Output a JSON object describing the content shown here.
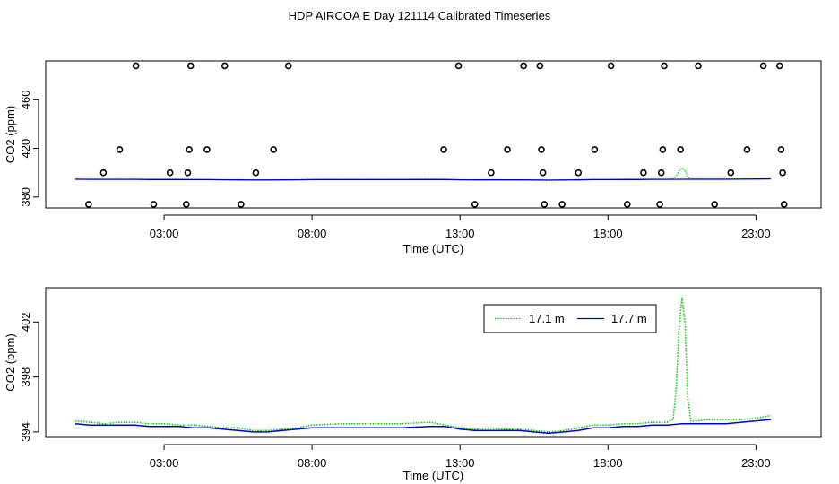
{
  "title": "HDP AIRCOA E  Day 121114  Calibrated Timeseries",
  "chart_data": [
    {
      "type": "scatter",
      "panel": "top",
      "xlabel": "Time (UTC)",
      "ylabel": "CO2 (ppm)",
      "xlim": [
        -1.0,
        25.2
      ],
      "ylim": [
        371,
        492
      ],
      "xticks": [
        3,
        8,
        13,
        18,
        23
      ],
      "xtick_labels": [
        "03:00",
        "08:00",
        "13:00",
        "18:00",
        "23:00"
      ],
      "yticks": [
        380,
        420,
        460
      ],
      "ytick_labels": [
        "380",
        "420",
        "460"
      ],
      "calibration_points": [
        {
          "t": 0.45,
          "co2": 374
        },
        {
          "t": 0.95,
          "co2": 400
        },
        {
          "t": 1.5,
          "co2": 419
        },
        {
          "t": 2.05,
          "co2": 488
        },
        {
          "t": 2.65,
          "co2": 374
        },
        {
          "t": 3.2,
          "co2": 400
        },
        {
          "t": 3.75,
          "co2": 374
        },
        {
          "t": 3.8,
          "co2": 400
        },
        {
          "t": 3.85,
          "co2": 419
        },
        {
          "t": 3.9,
          "co2": 488
        },
        {
          "t": 4.45,
          "co2": 419
        },
        {
          "t": 5.05,
          "co2": 488
        },
        {
          "t": 5.6,
          "co2": 374
        },
        {
          "t": 6.1,
          "co2": 400
        },
        {
          "t": 6.7,
          "co2": 419
        },
        {
          "t": 7.2,
          "co2": 488
        },
        {
          "t": 12.45,
          "co2": 419
        },
        {
          "t": 12.95,
          "co2": 488
        },
        {
          "t": 13.5,
          "co2": 374
        },
        {
          "t": 14.05,
          "co2": 400
        },
        {
          "t": 14.6,
          "co2": 419
        },
        {
          "t": 15.15,
          "co2": 488
        },
        {
          "t": 15.7,
          "co2": 488
        },
        {
          "t": 15.75,
          "co2": 419
        },
        {
          "t": 15.8,
          "co2": 400
        },
        {
          "t": 15.85,
          "co2": 374
        },
        {
          "t": 16.45,
          "co2": 374
        },
        {
          "t": 17.0,
          "co2": 400
        },
        {
          "t": 17.55,
          "co2": 419
        },
        {
          "t": 18.1,
          "co2": 488
        },
        {
          "t": 18.65,
          "co2": 374
        },
        {
          "t": 19.2,
          "co2": 400
        },
        {
          "t": 19.75,
          "co2": 374
        },
        {
          "t": 19.8,
          "co2": 400
        },
        {
          "t": 19.85,
          "co2": 419
        },
        {
          "t": 19.9,
          "co2": 488
        },
        {
          "t": 20.45,
          "co2": 419
        },
        {
          "t": 21.05,
          "co2": 488
        },
        {
          "t": 21.6,
          "co2": 374
        },
        {
          "t": 22.15,
          "co2": 400
        },
        {
          "t": 22.7,
          "co2": 419
        },
        {
          "t": 23.25,
          "co2": 488
        },
        {
          "t": 23.8,
          "co2": 488
        },
        {
          "t": 23.85,
          "co2": 419
        },
        {
          "t": 23.9,
          "co2": 400
        },
        {
          "t": 23.95,
          "co2": 374
        }
      ],
      "series": [
        {
          "name": "17.1 m",
          "color": "#00cc00",
          "style": "dotted",
          "x": [
            0.0,
            0.5,
            1.0,
            1.5,
            2.0,
            2.5,
            3.0,
            3.5,
            4.0,
            4.5,
            5.0,
            5.5,
            6.0,
            6.5,
            7.0,
            7.5,
            8.0,
            9.0,
            10.0,
            11.0,
            12.0,
            12.5,
            13.0,
            13.5,
            14.0,
            14.5,
            15.0,
            15.5,
            16.0,
            16.5,
            17.0,
            17.5,
            18.0,
            18.5,
            19.0,
            19.5,
            20.0,
            20.2,
            20.3,
            20.4,
            20.5,
            20.6,
            20.7,
            20.8,
            21.0,
            21.5,
            22.0,
            22.5,
            23.0,
            23.5
          ],
          "values": [
            394.8,
            394.7,
            394.6,
            394.7,
            394.7,
            394.6,
            394.6,
            394.5,
            394.5,
            394.4,
            394.3,
            394.3,
            394.1,
            394.1,
            394.2,
            394.3,
            394.5,
            394.6,
            394.6,
            394.6,
            394.7,
            394.5,
            394.3,
            394.2,
            394.3,
            394.2,
            394.2,
            394.1,
            394.0,
            394.1,
            394.3,
            394.5,
            394.5,
            394.6,
            394.6,
            394.7,
            394.7,
            394.9,
            397.0,
            401.5,
            403.8,
            402.0,
            396.5,
            394.8,
            394.8,
            394.9,
            394.9,
            394.9,
            395.0,
            395.2
          ]
        },
        {
          "name": "17.7 m",
          "color": "#0000cc",
          "style": "solid",
          "x": [
            0.0,
            0.5,
            1.0,
            1.5,
            2.0,
            2.5,
            3.0,
            3.5,
            4.0,
            4.5,
            5.0,
            5.5,
            6.0,
            6.5,
            7.0,
            7.5,
            8.0,
            9.0,
            10.0,
            11.0,
            12.0,
            12.5,
            13.0,
            13.5,
            14.0,
            14.5,
            15.0,
            15.5,
            16.0,
            16.5,
            17.0,
            17.5,
            18.0,
            18.5,
            19.0,
            19.5,
            20.0,
            20.5,
            21.0,
            21.5,
            22.0,
            22.5,
            23.0,
            23.5
          ],
          "values": [
            394.6,
            394.5,
            394.5,
            394.5,
            394.5,
            394.4,
            394.4,
            394.4,
            394.3,
            394.3,
            394.2,
            394.1,
            394.0,
            394.0,
            394.1,
            394.2,
            394.3,
            394.3,
            394.3,
            394.3,
            394.4,
            394.4,
            394.2,
            394.1,
            394.1,
            394.1,
            394.1,
            394.0,
            393.9,
            394.0,
            394.1,
            394.3,
            394.3,
            394.4,
            394.4,
            394.5,
            394.5,
            394.6,
            394.6,
            394.6,
            394.6,
            394.7,
            394.8,
            394.9
          ]
        }
      ]
    },
    {
      "type": "line",
      "panel": "bottom",
      "xlabel": "Time (UTC)",
      "ylabel": "CO2 (ppm)",
      "xlim": [
        -1.0,
        25.2
      ],
      "ylim": [
        393.6,
        404.5
      ],
      "xticks": [
        3,
        8,
        13,
        18,
        23
      ],
      "xtick_labels": [
        "03:00",
        "08:00",
        "13:00",
        "18:00",
        "23:00"
      ],
      "yticks": [
        394,
        398,
        402
      ],
      "ytick_labels": [
        "394",
        "398",
        "402"
      ],
      "legend": {
        "position": "top-right",
        "entries": [
          "17.1 m",
          "17.7 m"
        ]
      }
    }
  ]
}
